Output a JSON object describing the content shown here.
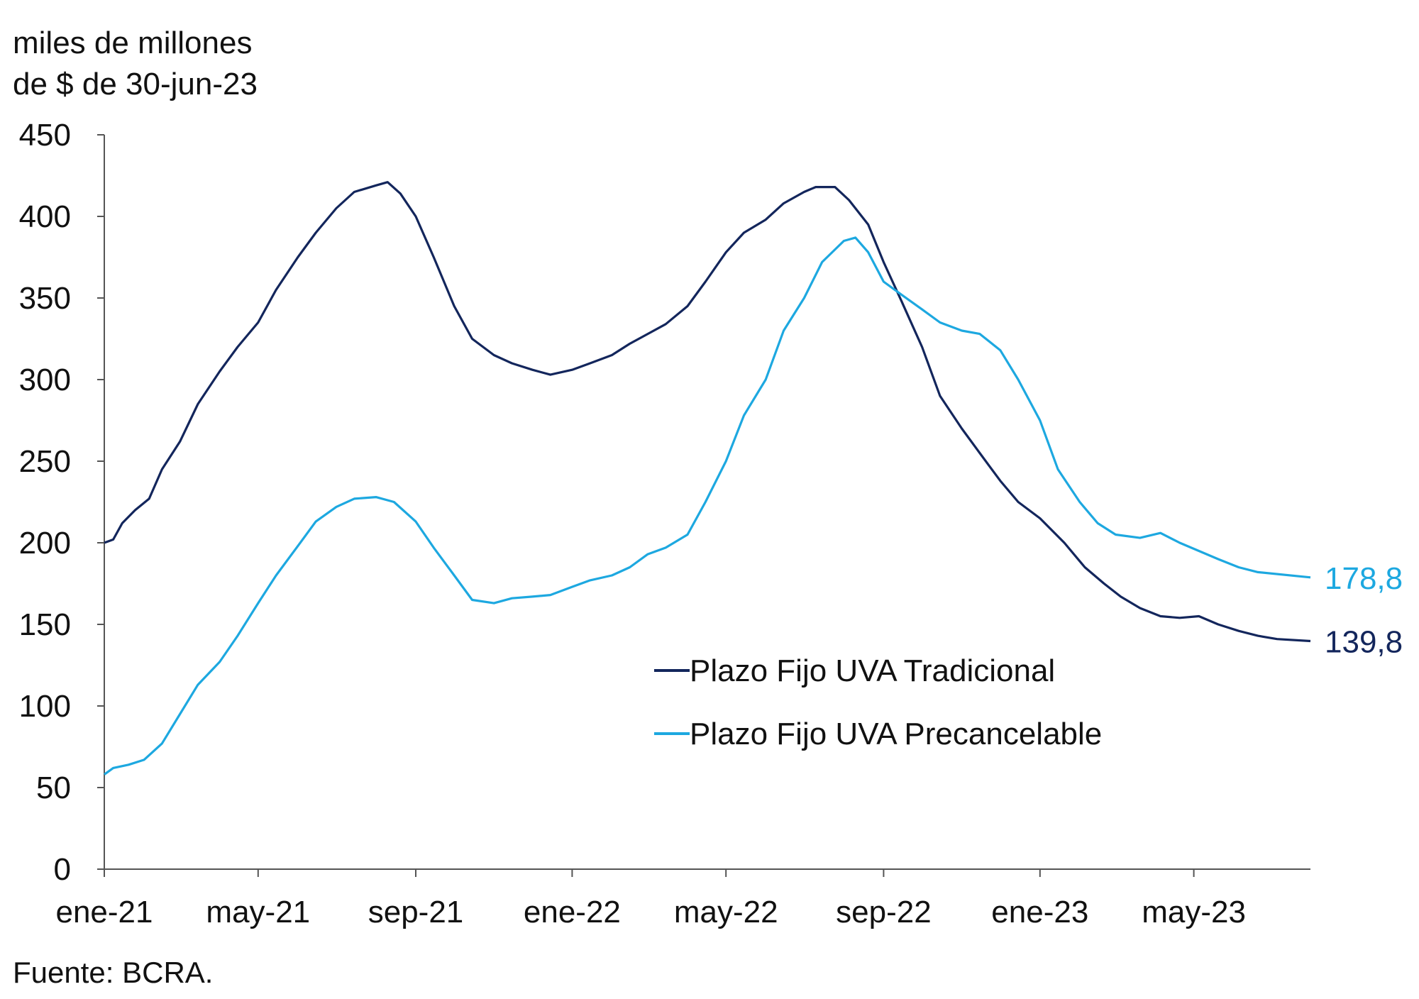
{
  "chart_data": {
    "type": "line",
    "ylabel_lines": [
      "miles de millones",
      "de $ de 30-jun-23"
    ],
    "ylim": [
      0,
      450
    ],
    "yticks": [
      0,
      50,
      100,
      150,
      200,
      250,
      300,
      350,
      400,
      450
    ],
    "xlim": [
      "2021-01-01",
      "2023-07-31"
    ],
    "xticks": [
      {
        "date": "2021-01-01",
        "label": "ene-21"
      },
      {
        "date": "2021-05-01",
        "label": "may-21"
      },
      {
        "date": "2021-09-01",
        "label": "sep-21"
      },
      {
        "date": "2022-01-01",
        "label": "ene-22"
      },
      {
        "date": "2022-05-01",
        "label": "may-22"
      },
      {
        "date": "2022-09-01",
        "label": "sep-22"
      },
      {
        "date": "2023-01-01",
        "label": "ene-23"
      },
      {
        "date": "2023-05-01",
        "label": "may-23"
      }
    ],
    "grid": false,
    "legend_position": "center-right",
    "series": [
      {
        "name": "Plazo Fijo UVA Tradicional",
        "color": "#13265c",
        "end_label": "139,8",
        "points": [
          [
            "2021-01-01",
            200
          ],
          [
            "2021-01-08",
            202
          ],
          [
            "2021-01-15",
            212
          ],
          [
            "2021-01-25",
            220
          ],
          [
            "2021-02-05",
            227
          ],
          [
            "2021-02-15",
            245
          ],
          [
            "2021-03-01",
            262
          ],
          [
            "2021-03-15",
            285
          ],
          [
            "2021-04-01",
            305
          ],
          [
            "2021-04-15",
            320
          ],
          [
            "2021-05-01",
            335
          ],
          [
            "2021-05-15",
            355
          ],
          [
            "2021-06-01",
            375
          ],
          [
            "2021-06-15",
            390
          ],
          [
            "2021-07-01",
            405
          ],
          [
            "2021-07-15",
            415
          ],
          [
            "2021-08-01",
            419
          ],
          [
            "2021-08-10",
            421
          ],
          [
            "2021-08-20",
            414
          ],
          [
            "2021-09-01",
            400
          ],
          [
            "2021-09-15",
            375
          ],
          [
            "2021-10-01",
            345
          ],
          [
            "2021-10-15",
            325
          ],
          [
            "2021-11-01",
            315
          ],
          [
            "2021-11-15",
            310
          ],
          [
            "2021-12-01",
            306
          ],
          [
            "2021-12-15",
            303
          ],
          [
            "2022-01-01",
            306
          ],
          [
            "2022-01-15",
            310
          ],
          [
            "2022-02-01",
            315
          ],
          [
            "2022-02-15",
            322
          ],
          [
            "2022-03-01",
            328
          ],
          [
            "2022-03-15",
            334
          ],
          [
            "2022-04-01",
            345
          ],
          [
            "2022-04-15",
            360
          ],
          [
            "2022-05-01",
            378
          ],
          [
            "2022-05-15",
            390
          ],
          [
            "2022-06-01",
            398
          ],
          [
            "2022-06-15",
            408
          ],
          [
            "2022-07-01",
            415
          ],
          [
            "2022-07-10",
            418
          ],
          [
            "2022-07-25",
            418
          ],
          [
            "2022-08-05",
            410
          ],
          [
            "2022-08-20",
            395
          ],
          [
            "2022-09-01",
            372
          ],
          [
            "2022-09-15",
            348
          ],
          [
            "2022-10-01",
            320
          ],
          [
            "2022-10-15",
            290
          ],
          [
            "2022-11-01",
            270
          ],
          [
            "2022-11-15",
            255
          ],
          [
            "2022-12-01",
            238
          ],
          [
            "2022-12-15",
            225
          ],
          [
            "2023-01-01",
            215
          ],
          [
            "2023-01-20",
            200
          ],
          [
            "2023-02-05",
            185
          ],
          [
            "2023-02-20",
            175
          ],
          [
            "2023-03-05",
            167
          ],
          [
            "2023-03-20",
            160
          ],
          [
            "2023-04-05",
            155
          ],
          [
            "2023-04-20",
            154
          ],
          [
            "2023-05-05",
            155
          ],
          [
            "2023-05-20",
            150
          ],
          [
            "2023-06-05",
            146
          ],
          [
            "2023-06-20",
            143
          ],
          [
            "2023-07-05",
            141
          ],
          [
            "2023-07-31",
            139.8
          ]
        ]
      },
      {
        "name": "Plazo Fijo UVA Precancelable",
        "color": "#1da8e0",
        "end_label": "178,8",
        "points": [
          [
            "2021-01-01",
            58
          ],
          [
            "2021-01-08",
            62
          ],
          [
            "2021-01-20",
            64
          ],
          [
            "2021-02-01",
            67
          ],
          [
            "2021-02-15",
            77
          ],
          [
            "2021-03-01",
            95
          ],
          [
            "2021-03-15",
            113
          ],
          [
            "2021-04-01",
            127
          ],
          [
            "2021-04-15",
            143
          ],
          [
            "2021-05-01",
            163
          ],
          [
            "2021-05-15",
            180
          ],
          [
            "2021-06-01",
            198
          ],
          [
            "2021-06-15",
            213
          ],
          [
            "2021-07-01",
            222
          ],
          [
            "2021-07-15",
            227
          ],
          [
            "2021-08-01",
            228
          ],
          [
            "2021-08-15",
            225
          ],
          [
            "2021-09-01",
            213
          ],
          [
            "2021-09-15",
            197
          ],
          [
            "2021-10-01",
            180
          ],
          [
            "2021-10-15",
            165
          ],
          [
            "2021-11-01",
            163
          ],
          [
            "2021-11-15",
            166
          ],
          [
            "2021-12-01",
            167
          ],
          [
            "2021-12-15",
            168
          ],
          [
            "2022-01-01",
            173
          ],
          [
            "2022-01-15",
            177
          ],
          [
            "2022-02-01",
            180
          ],
          [
            "2022-02-15",
            185
          ],
          [
            "2022-03-01",
            193
          ],
          [
            "2022-03-15",
            197
          ],
          [
            "2022-04-01",
            205
          ],
          [
            "2022-04-15",
            225
          ],
          [
            "2022-05-01",
            250
          ],
          [
            "2022-05-15",
            278
          ],
          [
            "2022-06-01",
            300
          ],
          [
            "2022-06-15",
            330
          ],
          [
            "2022-07-01",
            350
          ],
          [
            "2022-07-15",
            372
          ],
          [
            "2022-08-01",
            385
          ],
          [
            "2022-08-10",
            387
          ],
          [
            "2022-08-20",
            378
          ],
          [
            "2022-09-01",
            360
          ],
          [
            "2022-09-15",
            352
          ],
          [
            "2022-10-01",
            343
          ],
          [
            "2022-10-15",
            335
          ],
          [
            "2022-11-01",
            330
          ],
          [
            "2022-11-15",
            328
          ],
          [
            "2022-12-01",
            318
          ],
          [
            "2022-12-15",
            300
          ],
          [
            "2023-01-01",
            275
          ],
          [
            "2023-01-15",
            245
          ],
          [
            "2023-02-01",
            225
          ],
          [
            "2023-02-15",
            212
          ],
          [
            "2023-03-01",
            205
          ],
          [
            "2023-03-20",
            203
          ],
          [
            "2023-04-05",
            206
          ],
          [
            "2023-04-20",
            200
          ],
          [
            "2023-05-05",
            195
          ],
          [
            "2023-05-20",
            190
          ],
          [
            "2023-06-05",
            185
          ],
          [
            "2023-06-20",
            182
          ],
          [
            "2023-07-31",
            178.8
          ]
        ]
      }
    ]
  },
  "source": "Fuente: BCRA."
}
